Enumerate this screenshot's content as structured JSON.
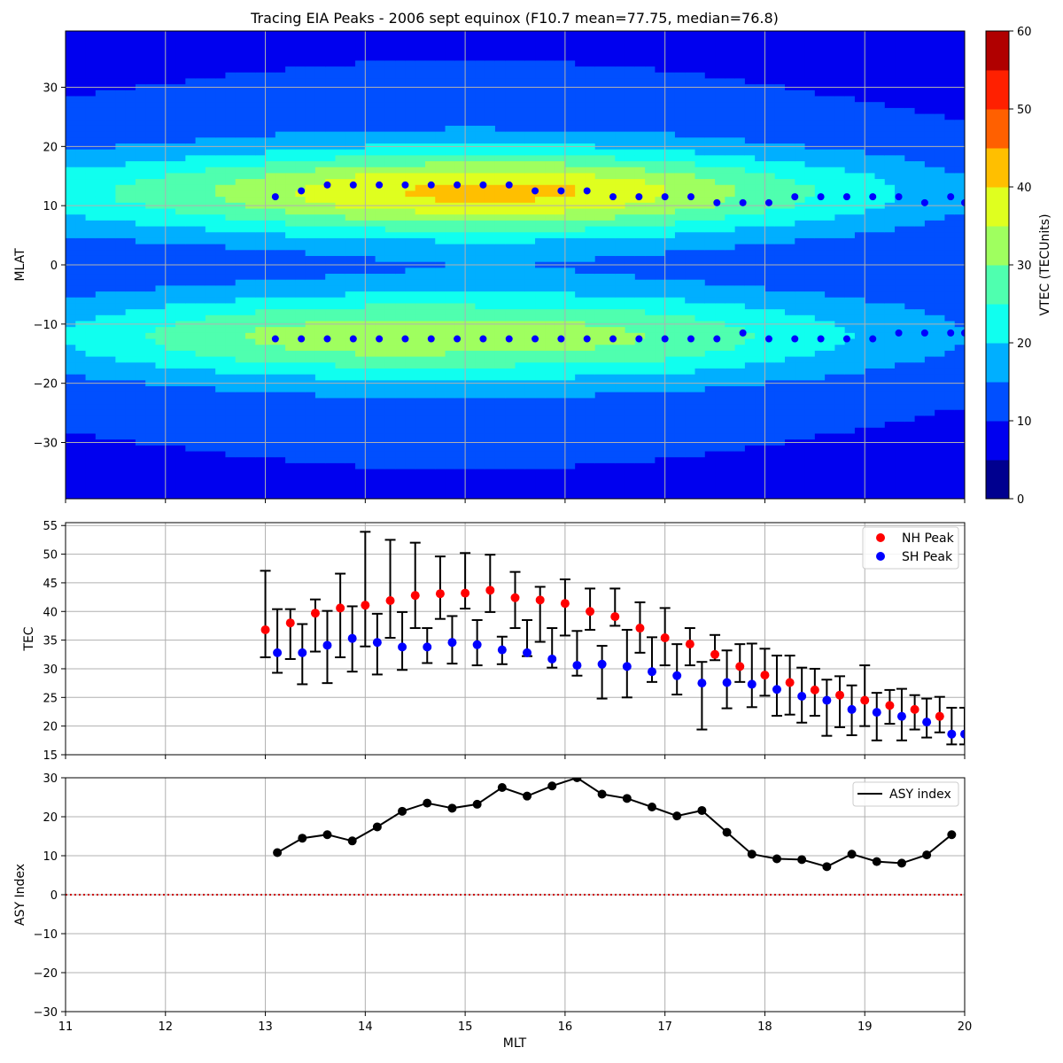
{
  "figure": {
    "title": "Tracing EIA Peaks - 2006 sept equinox (F10.7 mean=77.75, median=76.8)"
  },
  "colors": {
    "nh_peak": "#ff0000",
    "sh_peak": "#0000ff",
    "eia_track": "#0000ff",
    "asy_line": "#000000",
    "zero_line": "#cc0000",
    "grid": "#b0b0b0",
    "vtec_levels": [
      "#00008f",
      "#0000ef",
      "#004fff",
      "#00afff",
      "#10ffef",
      "#4fffaf",
      "#9fff5f",
      "#dfff1f",
      "#ffbf00",
      "#ff6000",
      "#ff2000",
      "#b00000"
    ]
  },
  "chart_data": [
    {
      "id": "vtec_map",
      "type": "heatmap",
      "title": "Tracing EIA Peaks - 2006 sept equinox (F10.7 mean=77.75, median=76.8)",
      "xlabel": "",
      "ylabel": "MLAT",
      "xlim": [
        11,
        20
      ],
      "ylim": [
        -39.5,
        39.5
      ],
      "yticks": [
        -30,
        -20,
        -10,
        0,
        10,
        20,
        30
      ],
      "grid": true,
      "colorbar": {
        "label": "VTEC (TECUnits)",
        "ticks": [
          0,
          10,
          20,
          30,
          40,
          50,
          60
        ],
        "levels": [
          0,
          5,
          10,
          15,
          20,
          25,
          30,
          35,
          40,
          45,
          50,
          55,
          60
        ]
      },
      "field_model": {
        "background_tec": 8,
        "crest_lat": 12.5,
        "crest_width_deg": 6.5,
        "nh_amplitude": [
          [
            11,
            22
          ],
          [
            12,
            26
          ],
          [
            13,
            32
          ],
          [
            14,
            39
          ],
          [
            15,
            42
          ],
          [
            16,
            41
          ],
          [
            17,
            35
          ],
          [
            18,
            27
          ],
          [
            19,
            21
          ],
          [
            20,
            14
          ]
        ],
        "sh_amplitude": [
          [
            11,
            18
          ],
          [
            12,
            24
          ],
          [
            13,
            29
          ],
          [
            14,
            31
          ],
          [
            15,
            30
          ],
          [
            16,
            29
          ],
          [
            17,
            27
          ],
          [
            18,
            22
          ],
          [
            19,
            17
          ],
          [
            20,
            13
          ]
        ]
      },
      "eia_tracks": {
        "mlt": [
          13.1,
          13.36,
          13.62,
          13.88,
          14.14,
          14.4,
          14.66,
          14.92,
          15.18,
          15.44,
          15.7,
          15.96,
          16.22,
          16.48,
          16.74,
          17.0,
          17.26,
          17.52,
          17.78,
          18.04,
          18.3,
          18.56,
          18.82,
          19.08,
          19.34,
          19.6,
          19.86,
          20.0
        ],
        "nh_lat": [
          11.5,
          12.5,
          13.5,
          13.5,
          13.5,
          13.5,
          13.5,
          13.5,
          13.5,
          13.5,
          12.5,
          12.5,
          12.5,
          11.5,
          11.5,
          11.5,
          11.5,
          10.5,
          10.5,
          10.5,
          11.5,
          11.5,
          11.5,
          11.5,
          11.5,
          10.5,
          11.5,
          10.5
        ],
        "sh_lat": [
          -12.5,
          -12.5,
          -12.5,
          -12.5,
          -12.5,
          -12.5,
          -12.5,
          -12.5,
          -12.5,
          -12.5,
          -12.5,
          -12.5,
          -12.5,
          -12.5,
          -12.5,
          -12.5,
          -12.5,
          -12.5,
          -11.5,
          -12.5,
          -12.5,
          -12.5,
          -12.5,
          -12.5,
          -11.5,
          -11.5,
          -11.5,
          -11.5
        ]
      }
    },
    {
      "id": "tec_peaks",
      "type": "scatter",
      "xlabel": "",
      "ylabel": "TEC",
      "xlim": [
        11,
        20
      ],
      "ylim": [
        15,
        55.5
      ],
      "yticks": [
        15,
        20,
        25,
        30,
        35,
        40,
        45,
        50,
        55
      ],
      "grid": true,
      "legend": "top-right",
      "series": [
        {
          "name": "NH Peak",
          "color": "#ff0000",
          "x": [
            13.0,
            13.25,
            13.5,
            13.75,
            14.0,
            14.25,
            14.5,
            14.75,
            15.0,
            15.25,
            15.5,
            15.75,
            16.0,
            16.25,
            16.5,
            16.75,
            17.0,
            17.25,
            17.5,
            17.75,
            18.0,
            18.25,
            18.5,
            18.75,
            19.0,
            19.25,
            19.5,
            19.75
          ],
          "y": [
            36.8,
            38.0,
            39.7,
            40.6,
            41.1,
            41.9,
            42.8,
            43.1,
            43.2,
            43.7,
            42.4,
            42.0,
            41.4,
            40.0,
            39.1,
            37.1,
            35.4,
            34.3,
            32.5,
            30.4,
            28.9,
            27.6,
            26.3,
            25.4,
            24.5,
            23.6,
            22.9,
            21.7
          ],
          "err_low": [
            32.0,
            31.7,
            33.0,
            32.0,
            33.9,
            35.4,
            37.1,
            38.7,
            40.5,
            39.9,
            37.1,
            34.7,
            35.8,
            36.8,
            37.5,
            32.8,
            30.6,
            30.6,
            31.5,
            27.7,
            25.3,
            22.0,
            21.8,
            19.8,
            20.0,
            20.4,
            19.4,
            18.9
          ],
          "err_high": [
            47.1,
            40.4,
            42.1,
            46.6,
            53.9,
            52.5,
            52.0,
            49.6,
            50.2,
            49.9,
            46.9,
            44.3,
            45.6,
            44.0,
            44.0,
            41.6,
            40.6,
            37.1,
            35.9,
            34.3,
            33.5,
            32.3,
            30.0,
            28.7,
            30.6,
            26.3,
            25.4,
            25.1
          ]
        },
        {
          "name": "SH Peak",
          "color": "#0000ff",
          "x": [
            13.12,
            13.37,
            13.62,
            13.87,
            14.12,
            14.37,
            14.62,
            14.87,
            15.12,
            15.37,
            15.62,
            15.87,
            16.12,
            16.37,
            16.62,
            16.87,
            17.12,
            17.37,
            17.62,
            17.87,
            18.12,
            18.37,
            18.62,
            18.87,
            19.12,
            19.37,
            19.62,
            19.87,
            20.0
          ],
          "y": [
            32.8,
            32.8,
            34.1,
            35.3,
            34.6,
            33.8,
            33.8,
            34.6,
            34.2,
            33.3,
            32.8,
            31.7,
            30.6,
            30.8,
            30.4,
            29.5,
            28.8,
            27.5,
            27.6,
            27.3,
            26.4,
            25.2,
            24.5,
            22.9,
            22.4,
            21.7,
            20.7,
            18.6,
            18.6
          ],
          "err_low": [
            29.3,
            27.3,
            27.5,
            29.5,
            29.0,
            29.8,
            31.0,
            30.9,
            30.6,
            30.8,
            32.2,
            30.2,
            28.8,
            24.8,
            25.0,
            27.7,
            25.5,
            19.4,
            23.1,
            23.3,
            21.8,
            20.6,
            18.3,
            18.4,
            17.5,
            17.5,
            18.0,
            16.8,
            16.8
          ],
          "err_high": [
            40.4,
            37.8,
            40.1,
            40.9,
            39.6,
            39.9,
            37.1,
            39.2,
            38.5,
            35.6,
            38.5,
            37.1,
            36.6,
            34.0,
            36.8,
            35.5,
            34.3,
            31.2,
            33.2,
            34.4,
            32.3,
            30.2,
            28.1,
            27.1,
            25.8,
            26.5,
            24.8,
            23.2,
            23.2
          ]
        }
      ]
    },
    {
      "id": "asy_index",
      "type": "line",
      "xlabel": "MLT",
      "ylabel": "ASY Index",
      "xlim": [
        11,
        20
      ],
      "ylim": [
        -30,
        30
      ],
      "xticks": [
        11,
        12,
        13,
        14,
        15,
        16,
        17,
        18,
        19,
        20
      ],
      "yticks": [
        -30,
        -20,
        -10,
        0,
        10,
        20,
        30
      ],
      "grid": true,
      "legend": "top-right",
      "reference_line": 0,
      "series": [
        {
          "name": "ASY index",
          "color": "#000000",
          "x": [
            13.12,
            13.37,
            13.62,
            13.87,
            14.12,
            14.37,
            14.62,
            14.87,
            15.12,
            15.37,
            15.62,
            15.87,
            16.12,
            16.37,
            16.62,
            16.87,
            17.12,
            17.37,
            17.62,
            17.87,
            18.12,
            18.37,
            18.62,
            18.87,
            19.12,
            19.37,
            19.62,
            19.87
          ],
          "y": [
            10.8,
            14.5,
            15.4,
            13.8,
            17.4,
            21.4,
            23.5,
            22.2,
            23.2,
            27.5,
            25.3,
            27.9,
            30.0,
            25.8,
            24.7,
            22.5,
            20.2,
            21.6,
            16.0,
            10.4,
            9.2,
            9.0,
            7.2,
            10.4,
            8.5,
            8.1,
            10.2,
            15.4
          ]
        }
      ]
    }
  ]
}
